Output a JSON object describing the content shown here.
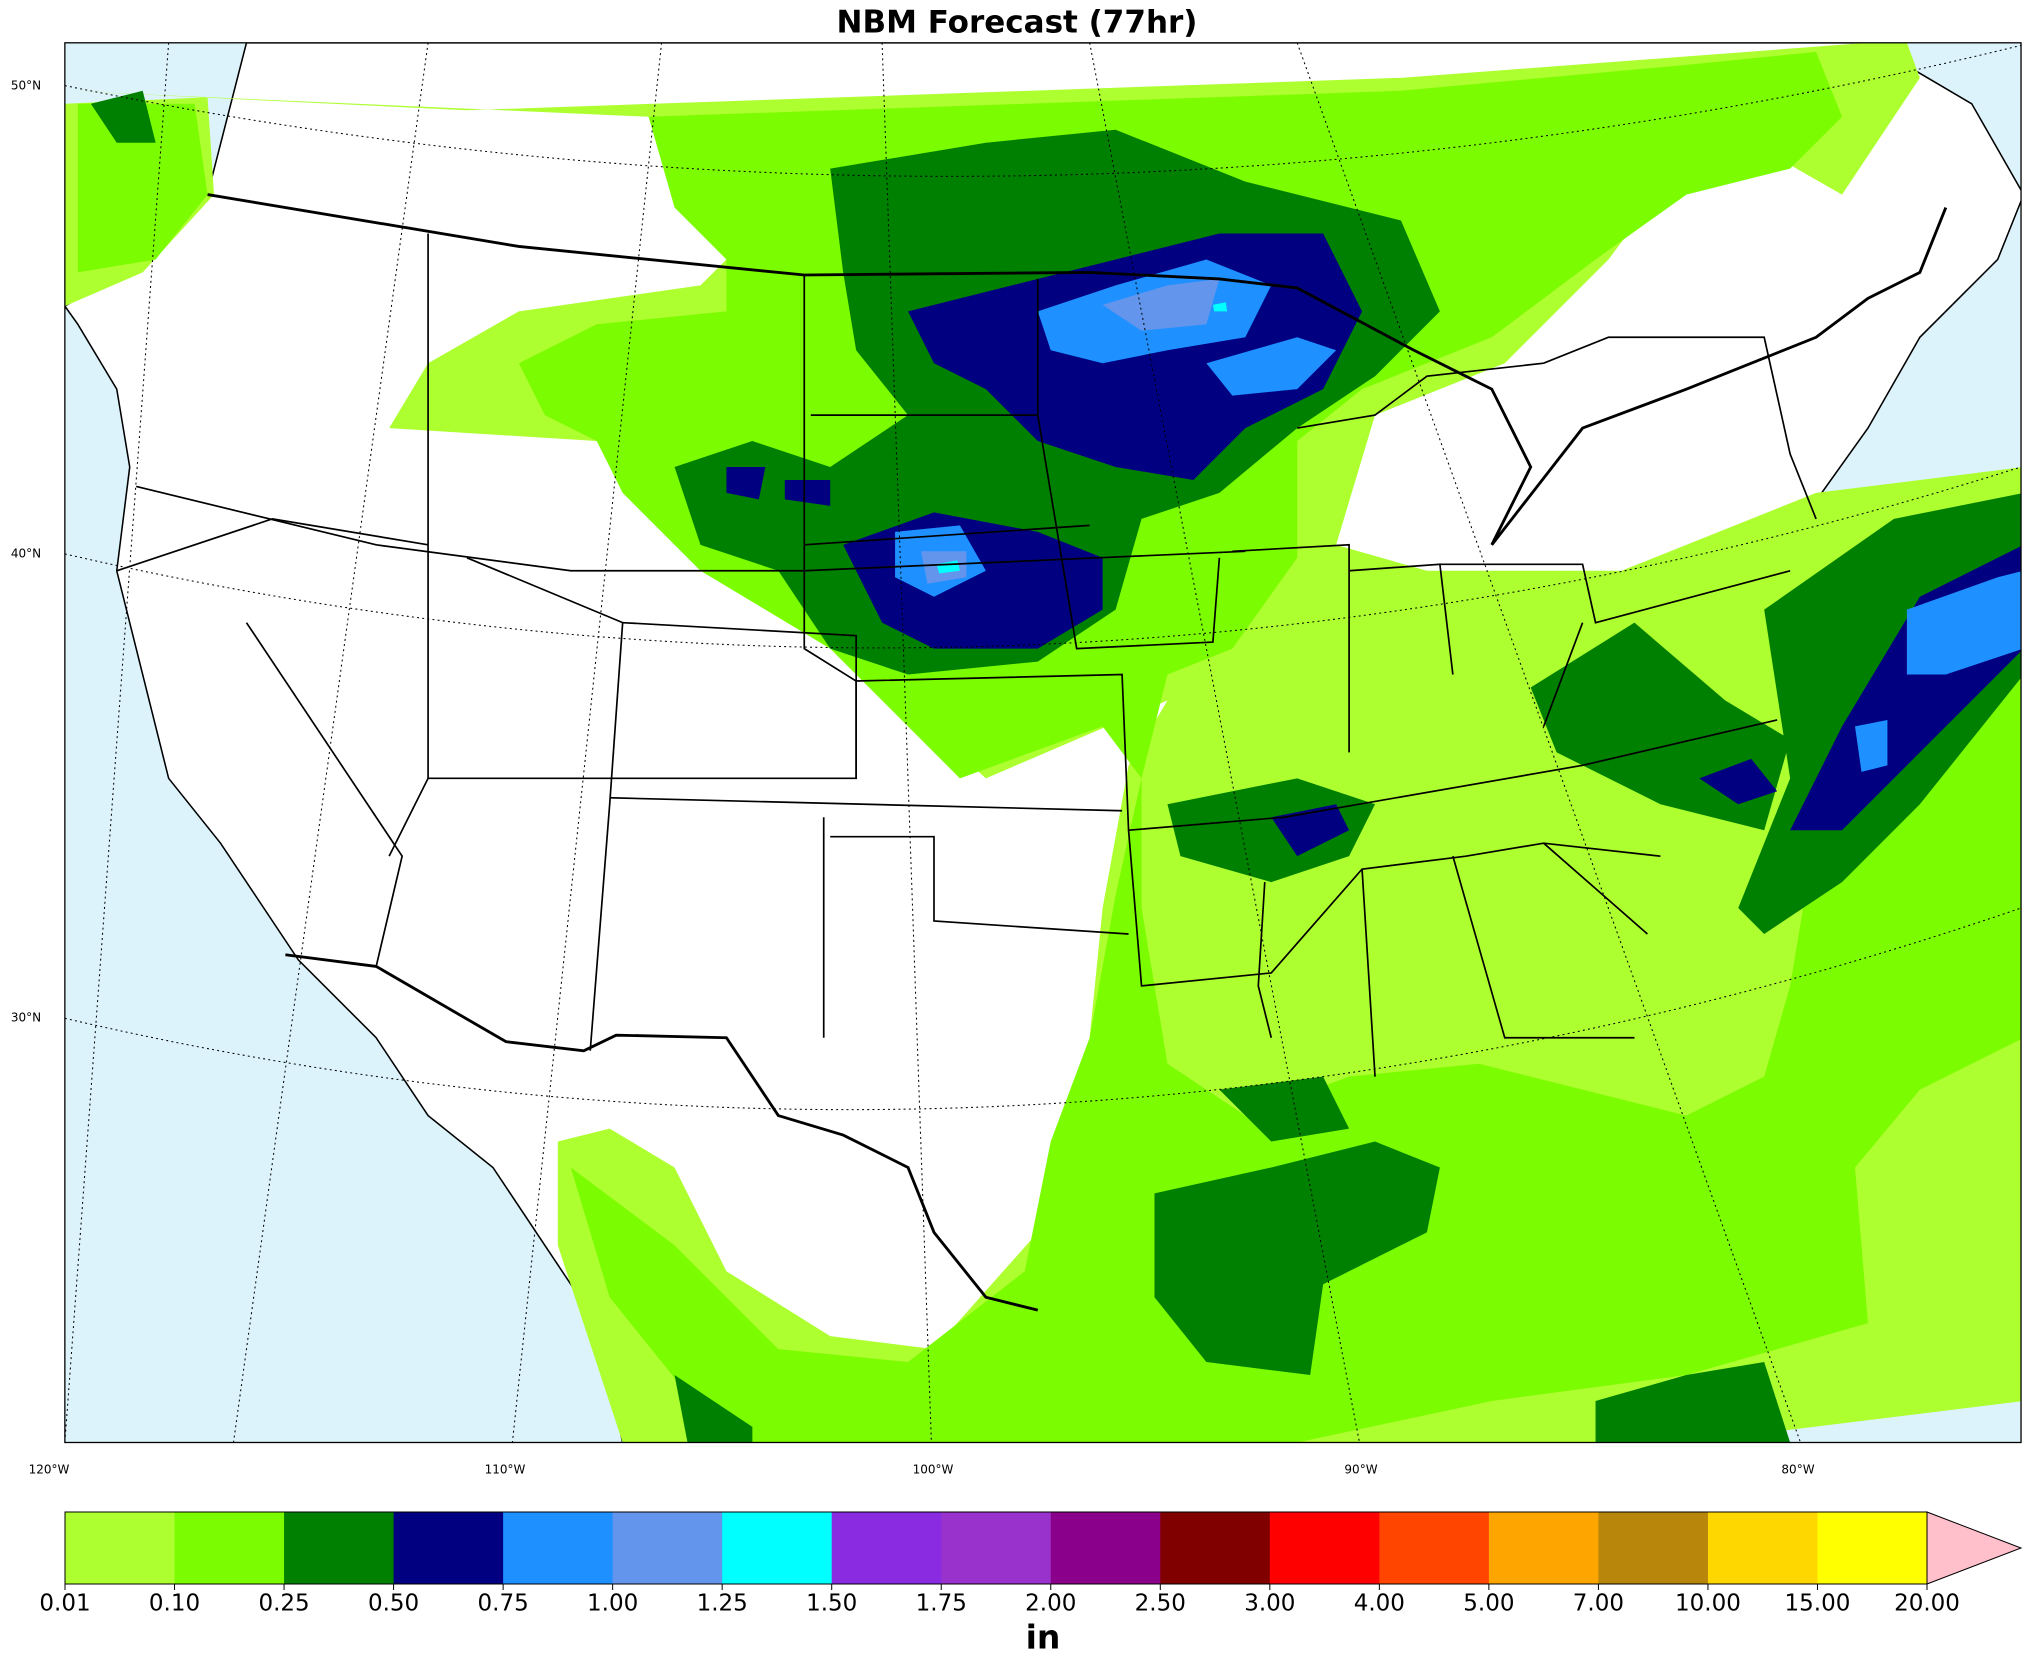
{
  "title": "NBM Forecast (77hr)",
  "lat_labels": [
    "50°N",
    "40°N",
    "30°N"
  ],
  "lon_labels": [
    "120°W",
    "110°W",
    "100°W",
    "90°W",
    "80°W"
  ],
  "colorbar": {
    "labels": [
      "0.01",
      "0.10",
      "0.25",
      "0.50",
      "0.75",
      "1.00",
      "1.25",
      "1.50",
      "1.75",
      "2.00",
      "2.50",
      "3.00",
      "4.00",
      "5.00",
      "7.00",
      "10.00",
      "15.00",
      "20.00"
    ],
    "colors": [
      "#adff2f",
      "#7cfc00",
      "#008000",
      "#000080",
      "#1e90ff",
      "#6495ed",
      "#00ffff",
      "#8a2be2",
      "#9932cc",
      "#8b008b",
      "#800000",
      "#ff0000",
      "#ff4500",
      "#ffa500",
      "#b8860b",
      "#ffd700",
      "#ffff00"
    ],
    "extend_color": "#ffc0cb",
    "unit": "in"
  }
}
